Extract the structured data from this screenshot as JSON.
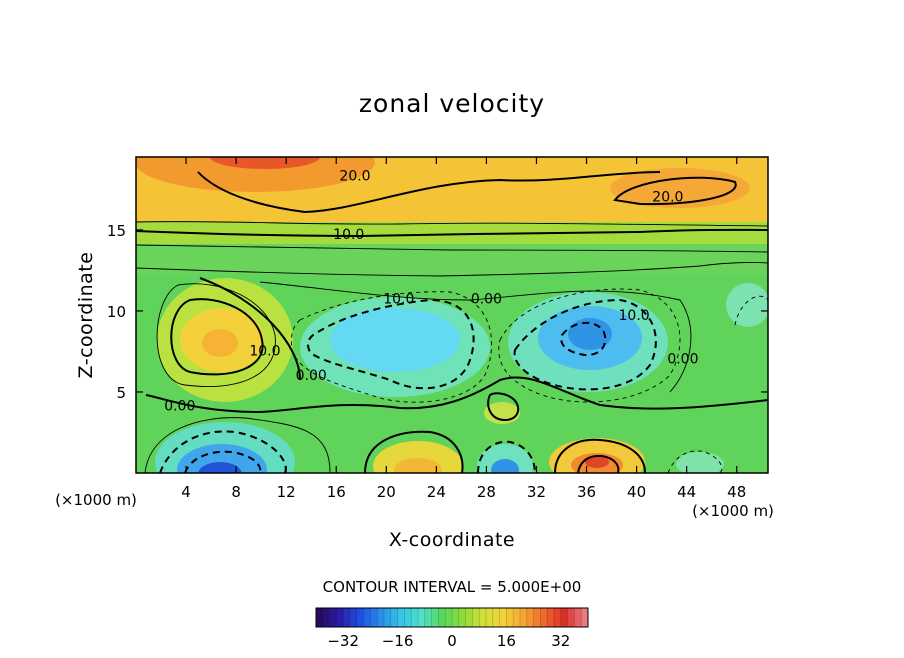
{
  "chart_data": {
    "type": "heatmap",
    "title": "zonal velocity",
    "xlabel": "X-coordinate",
    "ylabel": "Z-coordinate",
    "x_unit_label": "(×1000 m)",
    "z_unit_label": "(×1000 m)",
    "xlim": [
      0,
      50.5
    ],
    "ylim": [
      0,
      19.5
    ],
    "x_ticks": [
      "4",
      "8",
      "12",
      "16",
      "20",
      "24",
      "28",
      "32",
      "36",
      "40",
      "44",
      "48"
    ],
    "x_tick_values": [
      4,
      8,
      12,
      16,
      20,
      24,
      28,
      32,
      36,
      40,
      44,
      48
    ],
    "y_ticks": [
      "5",
      "10",
      "15"
    ],
    "y_tick_values": [
      5,
      10,
      15
    ],
    "contour_interval_text": "CONTOUR INTERVAL = 5.000E+00",
    "colorbar": {
      "range": [
        -40,
        40
      ],
      "tick_labels": [
        "−32",
        "−16",
        "0",
        "16",
        "32"
      ],
      "tick_values": [
        -32,
        -16,
        0,
        16,
        32
      ]
    },
    "contour_labels": [
      {
        "text": "20.0",
        "x": 17.5,
        "z": 18.3
      },
      {
        "text": "20.0",
        "x": 42.5,
        "z": 17.0
      },
      {
        "text": "10.0",
        "x": 17.0,
        "z": 14.7
      },
      {
        "text": "10.0",
        "x": 21.0,
        "z": 10.7
      },
      {
        "text": "0.00",
        "x": 28.0,
        "z": 10.7
      },
      {
        "text": "10.0",
        "x": 39.8,
        "z": 9.7
      },
      {
        "text": "0.00",
        "x": 43.7,
        "z": 7.0
      },
      {
        "text": "10.0",
        "x": 10.3,
        "z": 7.5
      },
      {
        "text": "0.00",
        "x": 14.0,
        "z": 6.0
      },
      {
        "text": "0.00",
        "x": 3.5,
        "z": 4.1
      }
    ],
    "features": [
      {
        "x": 8,
        "z": 8.2,
        "value": 16
      },
      {
        "x": 21,
        "z": 8.3,
        "value": -14
      },
      {
        "x": 36,
        "z": 8.8,
        "value": -18
      },
      {
        "x": 7,
        "z": 0.6,
        "value": -26
      },
      {
        "x": 23.5,
        "z": 0.5,
        "value": 14
      },
      {
        "x": 29.5,
        "z": 0.9,
        "value": -22
      },
      {
        "x": 36,
        "z": 0.8,
        "value": 26
      },
      {
        "x": 10,
        "z": 19.5,
        "value": 32
      },
      {
        "x": 42,
        "z": 17.8,
        "value": 24
      },
      {
        "x": 29,
        "z": 3.8,
        "value": 8
      }
    ]
  }
}
